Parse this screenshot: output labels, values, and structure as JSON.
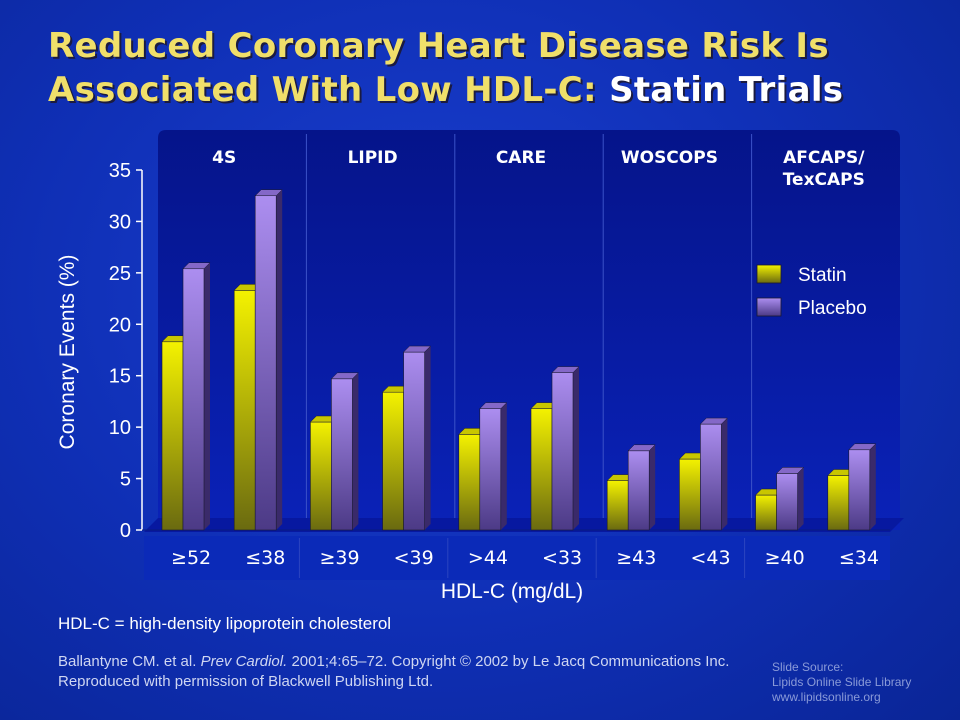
{
  "title": {
    "line1": "Reduced Coronary Heart Disease Risk Is",
    "line2_prefix": "Associated With Low HDL-C: ",
    "line2_accent": "Statin Trials"
  },
  "chart_data": {
    "type": "bar",
    "ylabel": "Coronary Events (%)",
    "xlabel": "HDL-C (mg/dL)",
    "ylim": [
      0,
      35
    ],
    "yticks": [
      0,
      5,
      10,
      15,
      20,
      25,
      30,
      35
    ],
    "groups": [
      {
        "name": "4S",
        "categories": [
          "≥52",
          "≤38"
        ]
      },
      {
        "name": "LIPID",
        "categories": [
          "≥39",
          "<39"
        ]
      },
      {
        "name": "CARE",
        "categories": [
          ">44",
          "<33"
        ]
      },
      {
        "name": "WOSCOPS",
        "categories": [
          "≥43",
          "<43"
        ]
      },
      {
        "name": "AFCAPS/ TexCAPS",
        "categories": [
          "≥40",
          "≤34"
        ]
      }
    ],
    "categories": [
      "≥52",
      "≤38",
      "≥39",
      "<39",
      ">44",
      "<33",
      "≥43",
      "<43",
      "≥40",
      "≤34"
    ],
    "series": [
      {
        "name": "Statin",
        "color": "#f2f000",
        "values": [
          18.3,
          23.3,
          10.5,
          13.4,
          9.3,
          11.8,
          4.8,
          6.9,
          3.4,
          5.3
        ]
      },
      {
        "name": "Placebo",
        "color": "#a888e8",
        "values": [
          25.4,
          32.5,
          14.7,
          17.3,
          11.8,
          15.3,
          7.7,
          10.3,
          5.5,
          7.8
        ]
      }
    ],
    "legend_position": "right"
  },
  "footnote": "HDL-C = high-density lipoprotein cholesterol",
  "citation": {
    "before": "Ballantyne CM. et al. ",
    "journal": "Prev Cardiol.",
    "after": " 2001;4:65–72.  Copyright © 2002 by Le Jacq Communications Inc. Reproduced with permission of Blackwell Publishing Ltd."
  },
  "source": {
    "line1": "Slide Source:",
    "line2": "Lipids Online Slide Library",
    "line3": "www.lipidsonline.org"
  }
}
